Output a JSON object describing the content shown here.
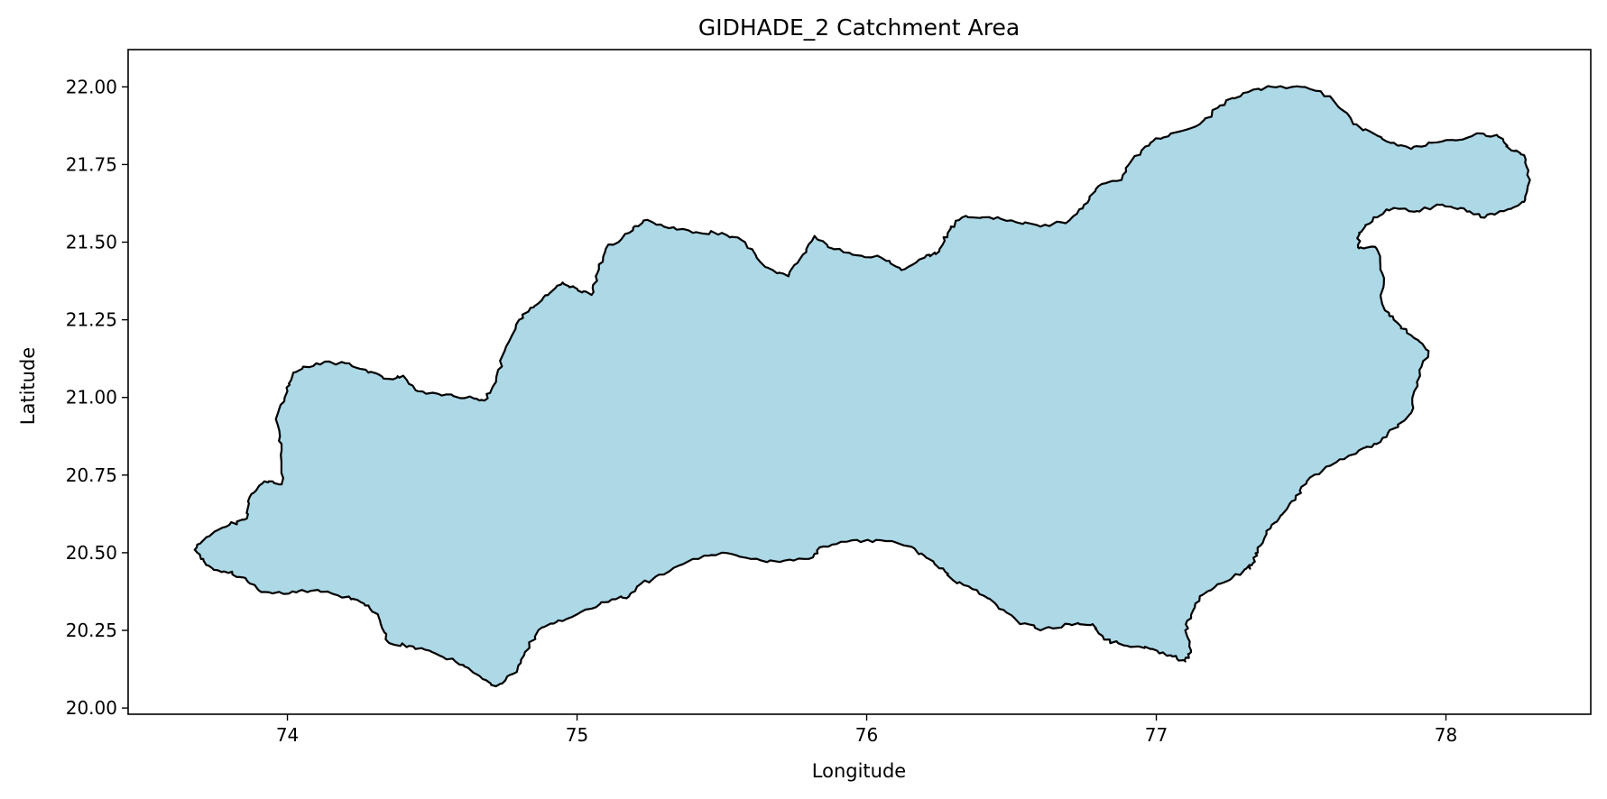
{
  "chart_data": {
    "type": "map",
    "title": "GIDHADE_2 Catchment Area",
    "xlabel": "Longitude",
    "ylabel": "Latitude",
    "xlim": [
      73.45,
      78.5
    ],
    "ylim": [
      19.98,
      22.12
    ],
    "x_ticks": [
      74,
      75,
      76,
      77,
      78
    ],
    "x_tick_labels": [
      "74",
      "75",
      "76",
      "77",
      "78"
    ],
    "y_ticks": [
      20.0,
      20.25,
      20.5,
      20.75,
      21.0,
      21.25,
      21.5,
      21.75,
      22.0
    ],
    "y_tick_labels": [
      "20.00",
      "20.25",
      "20.50",
      "20.75",
      "21.00",
      "21.25",
      "21.50",
      "21.75",
      "22.00"
    ],
    "grid": false,
    "fill_color": "#add8e6",
    "edge_color": "#000000",
    "polygon": [
      [
        73.68,
        20.51
      ],
      [
        73.72,
        20.55
      ],
      [
        73.8,
        20.59
      ],
      [
        73.86,
        20.61
      ],
      [
        73.87,
        20.68
      ],
      [
        73.92,
        20.73
      ],
      [
        73.98,
        20.72
      ],
      [
        73.98,
        20.83
      ],
      [
        73.96,
        20.93
      ],
      [
        74.0,
        21.02
      ],
      [
        74.02,
        21.08
      ],
      [
        74.1,
        21.11
      ],
      [
        74.2,
        21.11
      ],
      [
        74.28,
        21.08
      ],
      [
        74.35,
        21.06
      ],
      [
        74.4,
        21.07
      ],
      [
        74.45,
        21.02
      ],
      [
        74.55,
        21.01
      ],
      [
        74.62,
        21.0
      ],
      [
        74.68,
        20.99
      ],
      [
        74.72,
        21.05
      ],
      [
        74.75,
        21.15
      ],
      [
        74.8,
        21.25
      ],
      [
        74.85,
        21.29
      ],
      [
        74.9,
        21.33
      ],
      [
        74.95,
        21.37
      ],
      [
        75.0,
        21.35
      ],
      [
        75.05,
        21.33
      ],
      [
        75.07,
        21.4
      ],
      [
        75.1,
        21.48
      ],
      [
        75.18,
        21.53
      ],
      [
        75.23,
        21.57
      ],
      [
        75.3,
        21.55
      ],
      [
        75.4,
        21.53
      ],
      [
        75.5,
        21.53
      ],
      [
        75.58,
        21.5
      ],
      [
        75.65,
        21.42
      ],
      [
        75.73,
        21.39
      ],
      [
        75.78,
        21.46
      ],
      [
        75.82,
        21.52
      ],
      [
        75.88,
        21.48
      ],
      [
        75.95,
        21.46
      ],
      [
        76.05,
        21.45
      ],
      [
        76.12,
        21.41
      ],
      [
        76.2,
        21.45
      ],
      [
        76.25,
        21.47
      ],
      [
        76.28,
        21.53
      ],
      [
        76.33,
        21.58
      ],
      [
        76.4,
        21.58
      ],
      [
        76.5,
        21.57
      ],
      [
        76.6,
        21.55
      ],
      [
        76.7,
        21.57
      ],
      [
        76.75,
        21.62
      ],
      [
        76.8,
        21.68
      ],
      [
        76.88,
        21.7
      ],
      [
        76.92,
        21.77
      ],
      [
        76.98,
        21.82
      ],
      [
        77.05,
        21.85
      ],
      [
        77.15,
        21.88
      ],
      [
        77.22,
        21.94
      ],
      [
        77.3,
        21.98
      ],
      [
        77.4,
        22.0
      ],
      [
        77.5,
        22.0
      ],
      [
        77.6,
        21.97
      ],
      [
        77.68,
        21.88
      ],
      [
        77.75,
        21.85
      ],
      [
        77.82,
        21.82
      ],
      [
        77.88,
        21.8
      ],
      [
        77.95,
        21.82
      ],
      [
        78.05,
        21.83
      ],
      [
        78.12,
        21.85
      ],
      [
        78.18,
        21.84
      ],
      [
        78.22,
        21.8
      ],
      [
        78.27,
        21.78
      ],
      [
        78.29,
        21.7
      ],
      [
        78.27,
        21.63
      ],
      [
        78.2,
        21.6
      ],
      [
        78.12,
        21.58
      ],
      [
        78.05,
        21.61
      ],
      [
        77.98,
        21.62
      ],
      [
        77.9,
        21.6
      ],
      [
        77.82,
        21.61
      ],
      [
        77.75,
        21.58
      ],
      [
        77.7,
        21.53
      ],
      [
        77.7,
        21.48
      ],
      [
        77.76,
        21.48
      ],
      [
        77.78,
        21.4
      ],
      [
        77.78,
        21.3
      ],
      [
        77.82,
        21.25
      ],
      [
        77.88,
        21.2
      ],
      [
        77.94,
        21.15
      ],
      [
        77.9,
        21.05
      ],
      [
        77.88,
        20.95
      ],
      [
        77.82,
        20.9
      ],
      [
        77.76,
        20.85
      ],
      [
        77.7,
        20.83
      ],
      [
        77.6,
        20.78
      ],
      [
        77.52,
        20.73
      ],
      [
        77.48,
        20.67
      ],
      [
        77.43,
        20.62
      ],
      [
        77.38,
        20.57
      ],
      [
        77.35,
        20.5
      ],
      [
        77.33,
        20.46
      ],
      [
        77.3,
        20.44
      ],
      [
        77.22,
        20.4
      ],
      [
        77.15,
        20.36
      ],
      [
        77.12,
        20.3
      ],
      [
        77.1,
        20.25
      ],
      [
        77.12,
        20.18
      ],
      [
        77.1,
        20.15
      ],
      [
        77.05,
        20.17
      ],
      [
        76.98,
        20.19
      ],
      [
        76.9,
        20.2
      ],
      [
        76.82,
        20.22
      ],
      [
        76.78,
        20.27
      ],
      [
        76.7,
        20.27
      ],
      [
        76.6,
        20.25
      ],
      [
        76.52,
        20.28
      ],
      [
        76.45,
        20.33
      ],
      [
        76.38,
        20.38
      ],
      [
        76.3,
        20.41
      ],
      [
        76.25,
        20.45
      ],
      [
        76.2,
        20.49
      ],
      [
        76.15,
        20.52
      ],
      [
        76.05,
        20.54
      ],
      [
        75.95,
        20.54
      ],
      [
        75.85,
        20.52
      ],
      [
        75.8,
        20.48
      ],
      [
        75.7,
        20.47
      ],
      [
        75.6,
        20.48
      ],
      [
        75.5,
        20.5
      ],
      [
        75.4,
        20.48
      ],
      [
        75.3,
        20.43
      ],
      [
        75.22,
        20.4
      ],
      [
        75.18,
        20.36
      ],
      [
        75.12,
        20.35
      ],
      [
        75.05,
        20.32
      ],
      [
        74.95,
        20.28
      ],
      [
        74.88,
        20.26
      ],
      [
        74.82,
        20.18
      ],
      [
        74.78,
        20.11
      ],
      [
        74.72,
        20.07
      ],
      [
        74.65,
        20.11
      ],
      [
        74.58,
        20.15
      ],
      [
        74.5,
        20.18
      ],
      [
        74.42,
        20.2
      ],
      [
        74.35,
        20.21
      ],
      [
        74.32,
        20.28
      ],
      [
        74.28,
        20.33
      ],
      [
        74.22,
        20.35
      ],
      [
        74.15,
        20.37
      ],
      [
        74.05,
        20.38
      ],
      [
        73.98,
        20.37
      ],
      [
        73.9,
        20.38
      ],
      [
        73.85,
        20.42
      ],
      [
        73.78,
        20.44
      ],
      [
        73.72,
        20.46
      ],
      [
        73.68,
        20.51
      ]
    ]
  }
}
